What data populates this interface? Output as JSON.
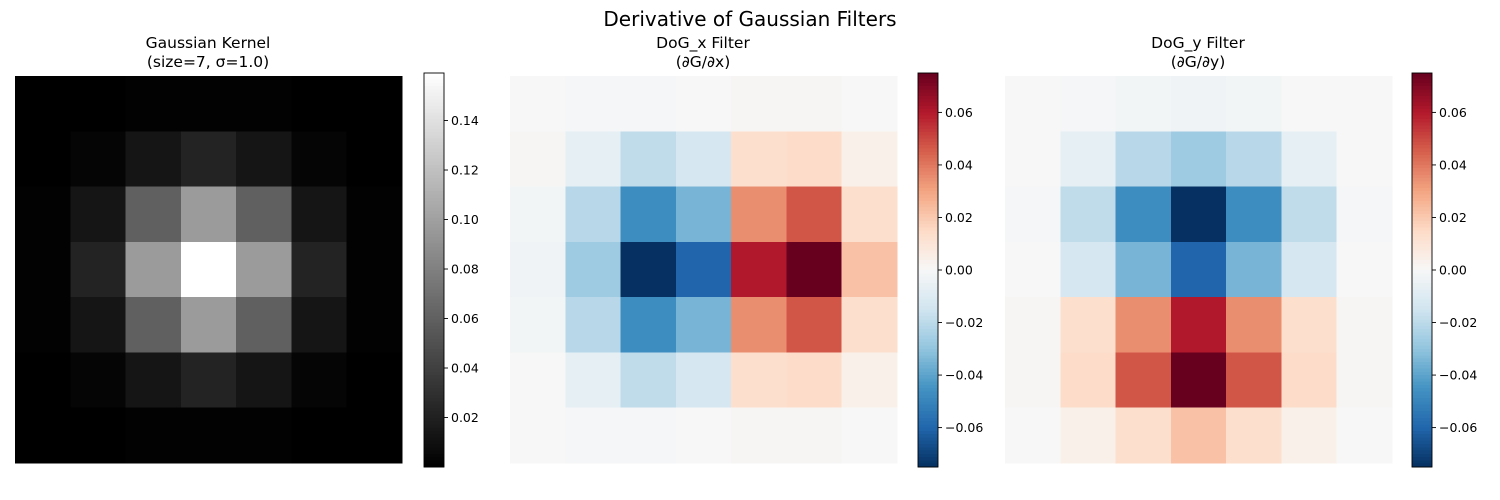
{
  "figure_title": "Derivative of Gaussian Filters",
  "chart_data": [
    {
      "type": "heatmap",
      "title": [
        "Gaussian Kernel",
        "(size=7, σ=1.0)"
      ],
      "colormap": "gray",
      "vmin": 0.0,
      "vmax": 0.1592,
      "colorbar_ticks": [
        0.02,
        0.04,
        0.06,
        0.08,
        0.1,
        0.12,
        0.14
      ],
      "colorbar_tick_labels": [
        "0.02",
        "0.04",
        "0.06",
        "0.08",
        "0.10",
        "0.12",
        "0.14"
      ],
      "values": [
        [
          0.0,
          0.0,
          0.001,
          0.001,
          0.001,
          0.0,
          0.0
        ],
        [
          0.0,
          0.003,
          0.013,
          0.022,
          0.013,
          0.003,
          0.0
        ],
        [
          0.001,
          0.013,
          0.06,
          0.097,
          0.06,
          0.013,
          0.001
        ],
        [
          0.001,
          0.022,
          0.097,
          0.159,
          0.097,
          0.022,
          0.001
        ],
        [
          0.001,
          0.013,
          0.06,
          0.097,
          0.06,
          0.013,
          0.001
        ],
        [
          0.0,
          0.003,
          0.013,
          0.022,
          0.013,
          0.003,
          0.0
        ],
        [
          0.0,
          0.0,
          0.001,
          0.001,
          0.001,
          0.0,
          0.0
        ]
      ]
    },
    {
      "type": "heatmap",
      "title": [
        "DoG_x Filter",
        "(∂G/∂x)"
      ],
      "colormap": "RdBu_r",
      "vmin": -0.075,
      "vmax": 0.075,
      "colorbar_ticks": [
        -0.06,
        -0.04,
        -0.02,
        0.0,
        0.02,
        0.04,
        0.06
      ],
      "colorbar_tick_labels": [
        "−0.06",
        "−0.04",
        "−0.02",
        "0.00",
        "0.02",
        "0.04",
        "0.06"
      ],
      "values": [
        [
          0.0,
          -0.001,
          -0.001,
          0.0,
          0.001,
          0.001,
          0.0
        ],
        [
          0.001,
          -0.007,
          -0.019,
          -0.013,
          0.013,
          0.014,
          0.004
        ],
        [
          -0.002,
          -0.021,
          -0.047,
          -0.035,
          0.035,
          0.047,
          0.013
        ],
        [
          -0.003,
          -0.027,
          -0.075,
          -0.06,
          0.06,
          0.075,
          0.022
        ],
        [
          -0.002,
          -0.021,
          -0.047,
          -0.035,
          0.035,
          0.047,
          0.013
        ],
        [
          0.0,
          -0.007,
          -0.019,
          -0.013,
          0.013,
          0.014,
          0.004
        ],
        [
          0.0,
          -0.001,
          -0.001,
          0.0,
          0.001,
          0.001,
          0.0
        ]
      ]
    },
    {
      "type": "heatmap",
      "title": [
        "DoG_y Filter",
        "(∂G/∂y)"
      ],
      "colormap": "RdBu_r",
      "vmin": -0.075,
      "vmax": 0.075,
      "colorbar_ticks": [
        -0.06,
        -0.04,
        -0.02,
        0.0,
        0.02,
        0.04,
        0.06
      ],
      "colorbar_tick_labels": [
        "−0.06",
        "−0.04",
        "−0.02",
        "0.00",
        "0.02",
        "0.04",
        "0.06"
      ],
      "values": [
        [
          0.0,
          -0.001,
          -0.002,
          -0.003,
          -0.002,
          0.0,
          0.0
        ],
        [
          0.0,
          -0.007,
          -0.021,
          -0.027,
          -0.021,
          -0.007,
          0.0
        ],
        [
          -0.001,
          -0.019,
          -0.047,
          -0.075,
          -0.047,
          -0.019,
          -0.001
        ],
        [
          0.0,
          -0.013,
          -0.035,
          -0.06,
          -0.035,
          -0.013,
          0.0
        ],
        [
          0.001,
          0.013,
          0.035,
          0.06,
          0.035,
          0.013,
          0.001
        ],
        [
          0.001,
          0.014,
          0.047,
          0.075,
          0.047,
          0.014,
          0.001
        ],
        [
          0.0,
          0.004,
          0.013,
          0.022,
          0.013,
          0.004,
          0.0
        ]
      ]
    }
  ]
}
